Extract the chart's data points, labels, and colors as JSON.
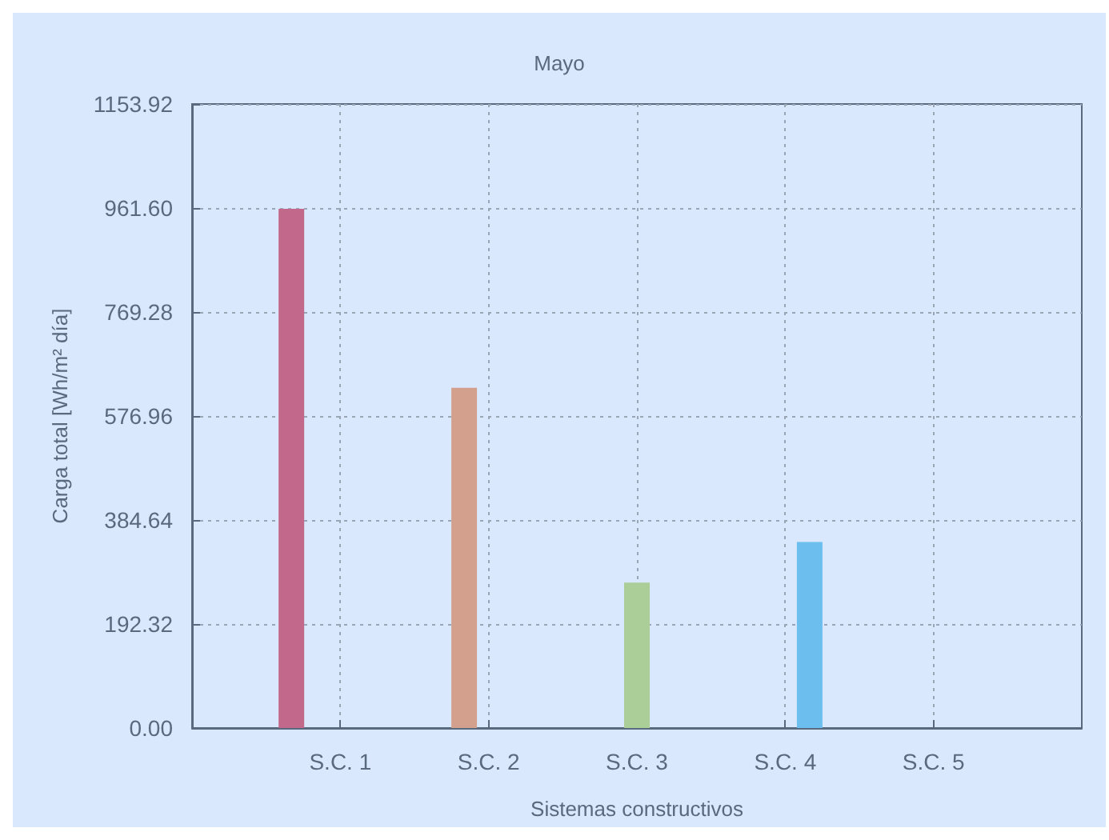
{
  "chart_data": {
    "type": "bar",
    "title": "Mayo",
    "xlabel": "Sistemas constructivos",
    "ylabel": "Carga total [Wh/m² día]",
    "categories": [
      "S.C. 1",
      "S.C. 2",
      "S.C. 3",
      "S.C. 4",
      "S.C. 5"
    ],
    "values": [
      960,
      629,
      269,
      344,
      0
    ],
    "colors": [
      "#c2688a",
      "#d4a08e",
      "#abce98",
      "#6bbeee",
      null
    ],
    "ylim": [
      0,
      1153.92
    ],
    "yticks": [
      {
        "value": 0,
        "label": "0.00"
      },
      {
        "value": 192.32,
        "label": "192.32"
      },
      {
        "value": 384.64,
        "label": "384.64"
      },
      {
        "value": 576.96,
        "label": "576.96"
      },
      {
        "value": 769.28,
        "label": "769.28"
      },
      {
        "value": 961.6,
        "label": "961.60"
      },
      {
        "value": 1153.92,
        "label": "1153.92"
      }
    ],
    "grid": true
  }
}
